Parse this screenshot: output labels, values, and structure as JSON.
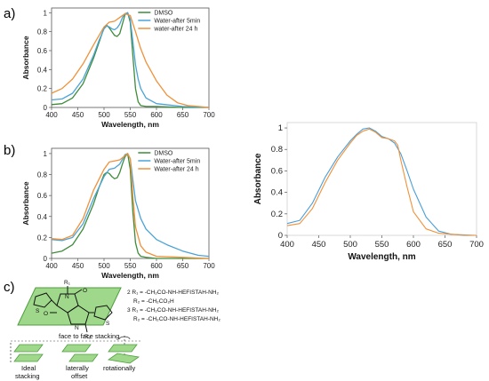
{
  "panel_labels": {
    "a": "a)",
    "b": "b)",
    "c": "c)"
  },
  "colors": {
    "dmso": "#3e8c3a",
    "water5": "#4aa3d8",
    "water24": "#f0913a",
    "c_blue": "#4a9fd8",
    "c_orange": "#f0913a",
    "sheet": "#9fd88a",
    "sheet_edge": "#4e9e3f"
  },
  "chart_data": [
    {
      "id": "a",
      "type": "line",
      "xlabel": "Wavelength, nm",
      "ylabel": "Absorbance",
      "xlim": [
        400,
        700
      ],
      "ylim": [
        0,
        1.05
      ],
      "xticks": [
        400,
        450,
        500,
        550,
        600,
        650,
        700
      ],
      "yticks": [
        0,
        0.2,
        0.4,
        0.6,
        0.8,
        1
      ],
      "ytick_labels": [
        "0",
        "0.2",
        "0.4",
        "0.6",
        "0.8",
        "1"
      ],
      "legend": "top-right",
      "series": [
        {
          "name": "DMSO",
          "color": "#3e8c3a",
          "x": [
            400,
            420,
            440,
            460,
            480,
            490,
            500,
            505,
            510,
            515,
            520,
            525,
            530,
            535,
            540,
            545,
            550,
            555,
            560,
            565,
            570,
            580,
            600,
            650,
            700
          ],
          "y": [
            0.03,
            0.04,
            0.1,
            0.25,
            0.52,
            0.68,
            0.84,
            0.87,
            0.84,
            0.8,
            0.76,
            0.75,
            0.78,
            0.88,
            0.98,
            1.0,
            0.9,
            0.55,
            0.2,
            0.06,
            0.02,
            0.01,
            0.01,
            0.0,
            0.0
          ]
        },
        {
          "name": "Water-after 5min",
          "color": "#4aa3d8",
          "x": [
            400,
            420,
            440,
            460,
            480,
            490,
            500,
            505,
            510,
            515,
            520,
            525,
            530,
            535,
            540,
            545,
            550,
            555,
            560,
            565,
            570,
            580,
            600,
            650,
            700
          ],
          "y": [
            0.08,
            0.09,
            0.15,
            0.3,
            0.55,
            0.7,
            0.83,
            0.86,
            0.85,
            0.83,
            0.82,
            0.84,
            0.88,
            0.95,
            0.99,
            1.0,
            0.93,
            0.7,
            0.45,
            0.3,
            0.2,
            0.1,
            0.04,
            0.01,
            0.0
          ]
        },
        {
          "name": "water-after 24 h",
          "color": "#f0913a",
          "x": [
            400,
            420,
            440,
            460,
            480,
            500,
            510,
            520,
            530,
            540,
            550,
            560,
            570,
            580,
            600,
            620,
            640,
            660,
            680,
            700
          ],
          "y": [
            0.15,
            0.2,
            0.3,
            0.46,
            0.66,
            0.85,
            0.9,
            0.91,
            0.95,
            0.99,
            0.97,
            0.8,
            0.62,
            0.48,
            0.28,
            0.13,
            0.05,
            0.02,
            0.01,
            0.0
          ]
        }
      ]
    },
    {
      "id": "b",
      "type": "line",
      "xlabel": "Wavelength, nm",
      "ylabel": "Absorbance",
      "xlim": [
        400,
        700
      ],
      "ylim": [
        0,
        1.05
      ],
      "xticks": [
        400,
        450,
        500,
        550,
        600,
        650,
        700
      ],
      "yticks": [
        0,
        0.2,
        0.4,
        0.6,
        0.8,
        1
      ],
      "ytick_labels": [
        "0",
        "0.2",
        "0.4",
        "0.6",
        "0.8",
        "1"
      ],
      "legend": "top-right",
      "series": [
        {
          "name": "DMSO",
          "color": "#3e8c3a",
          "x": [
            400,
            420,
            440,
            460,
            480,
            490,
            500,
            505,
            510,
            515,
            520,
            525,
            530,
            535,
            540,
            545,
            550,
            555,
            560,
            565,
            570,
            580,
            600,
            650,
            700
          ],
          "y": [
            0.05,
            0.07,
            0.13,
            0.28,
            0.52,
            0.67,
            0.8,
            0.82,
            0.81,
            0.78,
            0.76,
            0.77,
            0.82,
            0.9,
            0.97,
            1.0,
            0.85,
            0.45,
            0.15,
            0.05,
            0.02,
            0.01,
            0.0,
            0.0,
            0.0
          ]
        },
        {
          "name": "Water-after 5min",
          "color": "#4aa3d8",
          "x": [
            400,
            420,
            440,
            460,
            480,
            500,
            510,
            520,
            530,
            540,
            545,
            550,
            555,
            560,
            570,
            580,
            600,
            620,
            650,
            680,
            700
          ],
          "y": [
            0.18,
            0.17,
            0.2,
            0.33,
            0.57,
            0.78,
            0.85,
            0.86,
            0.9,
            0.99,
            1.0,
            0.95,
            0.75,
            0.55,
            0.38,
            0.28,
            0.18,
            0.13,
            0.07,
            0.03,
            0.02
          ]
        },
        {
          "name": "Water-after 24 h",
          "color": "#f0913a",
          "x": [
            400,
            420,
            440,
            460,
            480,
            500,
            510,
            520,
            530,
            540,
            545,
            550,
            555,
            560,
            570,
            580,
            600,
            650,
            700
          ],
          "y": [
            0.19,
            0.18,
            0.22,
            0.38,
            0.65,
            0.85,
            0.92,
            0.93,
            0.94,
            0.98,
            1.0,
            0.95,
            0.6,
            0.3,
            0.12,
            0.06,
            0.02,
            0.01,
            0.0
          ]
        }
      ]
    },
    {
      "id": "right",
      "type": "line",
      "xlabel": "Wavelength, nm",
      "ylabel": "Absorbance",
      "xlim": [
        400,
        700
      ],
      "ylim": [
        0,
        1.05
      ],
      "xticks": [
        400,
        450,
        500,
        550,
        600,
        650,
        700
      ],
      "yticks": [
        0,
        0.2,
        0.4,
        0.6,
        0.8,
        1
      ],
      "ytick_labels": [
        "0",
        "0.2",
        "0.4",
        "0.6",
        "0.8",
        "1"
      ],
      "legend": "none",
      "series": [
        {
          "color": "#4a9fd8",
          "x": [
            400,
            420,
            440,
            460,
            480,
            500,
            510,
            520,
            530,
            540,
            550,
            560,
            570,
            580,
            590,
            600,
            620,
            640,
            660,
            680,
            700
          ],
          "y": [
            0.11,
            0.14,
            0.3,
            0.54,
            0.73,
            0.88,
            0.94,
            0.99,
            1.0,
            0.97,
            0.92,
            0.9,
            0.86,
            0.76,
            0.6,
            0.43,
            0.17,
            0.04,
            0.01,
            0.0,
            0.0
          ]
        },
        {
          "color": "#f0913a",
          "x": [
            400,
            420,
            440,
            460,
            480,
            500,
            510,
            520,
            530,
            540,
            550,
            560,
            570,
            575,
            580,
            590,
            600,
            620,
            640,
            660,
            700
          ],
          "y": [
            0.09,
            0.11,
            0.25,
            0.49,
            0.7,
            0.86,
            0.93,
            0.97,
            0.99,
            0.96,
            0.91,
            0.9,
            0.88,
            0.84,
            0.7,
            0.45,
            0.22,
            0.06,
            0.02,
            0.01,
            0.0
          ]
        }
      ]
    }
  ],
  "panel_c": {
    "r1": "R₁",
    "r2": "R₂",
    "o_top": "O",
    "o_left": "O",
    "n_top": "N",
    "n_bottom": "N",
    "s_left": "S",
    "s_right": "S",
    "compound2_line1": "2 R₁ = -CH₂CO-NH-HEFISTAH-NH₂",
    "compound2_line2": "R₂ = -CH₂CO₂H",
    "compound3_line1": "3 R₁ = -CH₂CO-NH-HEFISTAH-NH₂",
    "compound3_line2": "R₂ = -CH₂CO-NH-HEFISTAH-NH₂",
    "stacking_title": "face to face stacking",
    "label_ideal_1": "Ideal",
    "label_ideal_2": "stacking",
    "label_lateral_1": "laterally",
    "label_lateral_2": "offset",
    "label_rot": "rotationally"
  }
}
